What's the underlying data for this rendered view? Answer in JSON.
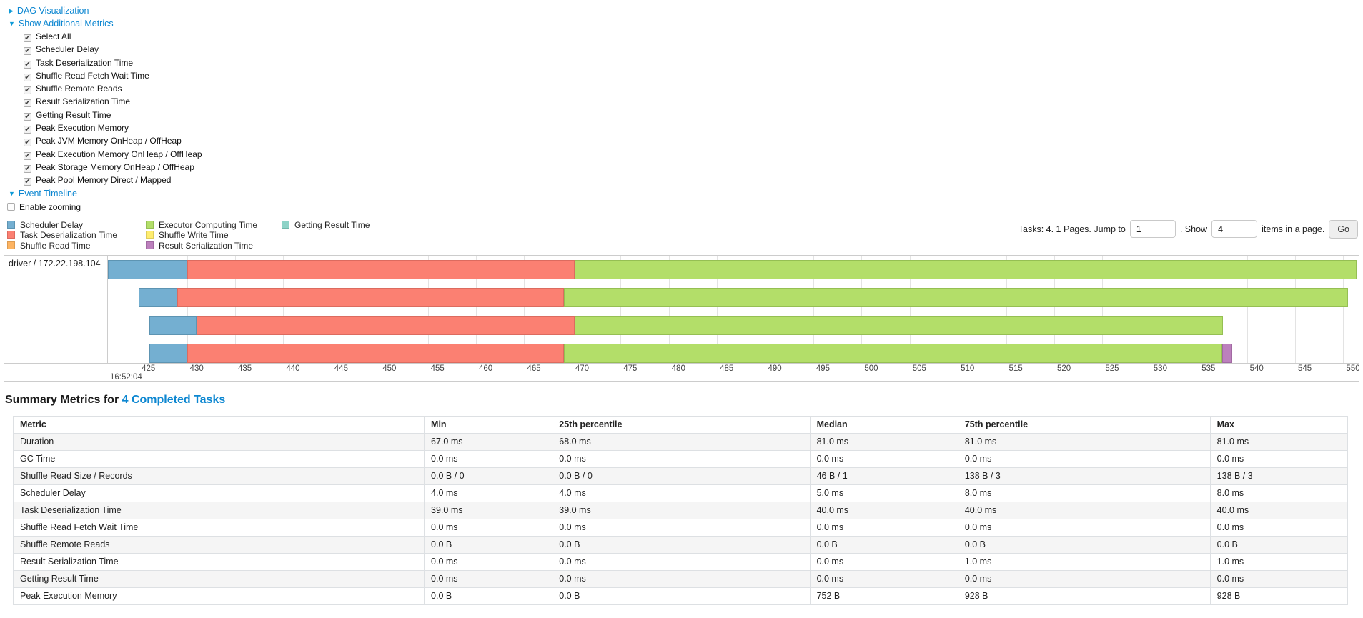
{
  "icons": {
    "collapsed": "▶",
    "expanded": "▼",
    "check": "✔"
  },
  "toggles": {
    "dag": "DAG Visualization",
    "metrics": "Show Additional Metrics",
    "timeline": "Event Timeline"
  },
  "metrics_panel": {
    "items": [
      {
        "label": "Select All",
        "checked": true
      },
      {
        "label": "Scheduler Delay",
        "checked": true
      },
      {
        "label": "Task Deserialization Time",
        "checked": true
      },
      {
        "label": "Shuffle Read Fetch Wait Time",
        "checked": true
      },
      {
        "label": "Shuffle Remote Reads",
        "checked": true
      },
      {
        "label": "Result Serialization Time",
        "checked": true
      },
      {
        "label": "Getting Result Time",
        "checked": true
      },
      {
        "label": "Peak Execution Memory",
        "checked": true
      },
      {
        "label": "Peak JVM Memory OnHeap / OffHeap",
        "checked": true
      },
      {
        "label": "Peak Execution Memory OnHeap / OffHeap",
        "checked": true
      },
      {
        "label": "Peak Storage Memory OnHeap / OffHeap",
        "checked": true
      },
      {
        "label": "Peak Pool Memory Direct / Mapped",
        "checked": true
      }
    ]
  },
  "enable_zooming": {
    "label": "Enable zooming",
    "checked": false
  },
  "palette": {
    "scheduler_delay": {
      "label": "Scheduler Delay",
      "fill": "#74AFD1",
      "stroke": "#5D94B2"
    },
    "task_deserialization": {
      "label": "Task Deserialization Time",
      "fill": "#FB8072",
      "stroke": "#DC6B5F"
    },
    "shuffle_read": {
      "label": "Shuffle Read Time",
      "fill": "#FDB462",
      "stroke": "#DD9B51"
    },
    "executor_computing": {
      "label": "Executor Computing Time",
      "fill": "#B3DE69",
      "stroke": "#95BF53"
    },
    "shuffle_write": {
      "label": "Shuffle Write Time",
      "fill": "#FFED6F",
      "stroke": "#DECD5B"
    },
    "result_serialization": {
      "label": "Result Serialization Time",
      "fill": "#BC80BD",
      "stroke": "#A169A2"
    },
    "getting_result": {
      "label": "Getting Result Time",
      "fill": "#8DD3C7",
      "stroke": "#72B8AB"
    }
  },
  "legend_columns": [
    [
      "scheduler_delay",
      "task_deserialization",
      "shuffle_read"
    ],
    [
      "executor_computing",
      "shuffle_write",
      "result_serialization"
    ],
    [
      "getting_result"
    ]
  ],
  "pagination": {
    "prefix": "Tasks: 4. 1 Pages. Jump to",
    "jump_value": "1",
    "mid": ". Show",
    "show_value": "4",
    "suffix": "items in a page.",
    "go_label": "Go"
  },
  "chart_data": {
    "type": "timeline-gantt",
    "executor_label": "driver / 172.22.198.104",
    "axis": {
      "unit": "ms",
      "min": 421.8,
      "max": 551.6,
      "tick_start": 425,
      "tick_end": 550,
      "tick_step": 5,
      "base_time_label": "16:52:04"
    },
    "tasks": [
      {
        "segments": [
          {
            "type": "scheduler_delay",
            "start": 421.8,
            "end": 430.0
          },
          {
            "type": "task_deserialization",
            "start": 430.0,
            "end": 470.2
          },
          {
            "type": "executor_computing",
            "start": 470.2,
            "end": 551.4
          }
        ]
      },
      {
        "segments": [
          {
            "type": "scheduler_delay",
            "start": 425.0,
            "end": 429.0
          },
          {
            "type": "task_deserialization",
            "start": 429.0,
            "end": 469.1
          },
          {
            "type": "executor_computing",
            "start": 469.1,
            "end": 550.5
          }
        ]
      },
      {
        "segments": [
          {
            "type": "scheduler_delay",
            "start": 426.1,
            "end": 431.0
          },
          {
            "type": "task_deserialization",
            "start": 431.0,
            "end": 470.2
          },
          {
            "type": "executor_computing",
            "start": 470.2,
            "end": 537.5
          }
        ]
      },
      {
        "segments": [
          {
            "type": "scheduler_delay",
            "start": 426.1,
            "end": 430.0
          },
          {
            "type": "task_deserialization",
            "start": 430.0,
            "end": 469.1
          },
          {
            "type": "executor_computing",
            "start": 469.1,
            "end": 537.4
          },
          {
            "type": "result_serialization",
            "start": 537.4,
            "end": 538.5
          }
        ]
      }
    ]
  },
  "summary": {
    "title_prefix": "Summary Metrics for ",
    "title_link": "4 Completed Tasks",
    "table": {
      "headers": [
        "Metric",
        "Min",
        "25th percentile",
        "Median",
        "75th percentile",
        "Max"
      ],
      "rows": [
        {
          "metric": "Duration",
          "values": [
            "67.0 ms",
            "68.0 ms",
            "81.0 ms",
            "81.0 ms",
            "81.0 ms"
          ]
        },
        {
          "metric": "GC Time",
          "values": [
            "0.0 ms",
            "0.0 ms",
            "0.0 ms",
            "0.0 ms",
            "0.0 ms"
          ]
        },
        {
          "metric": "Shuffle Read Size / Records",
          "values": [
            "0.0 B / 0",
            "0.0 B / 0",
            "46 B / 1",
            "138 B / 3",
            "138 B / 3"
          ]
        },
        {
          "metric": "Scheduler Delay",
          "values": [
            "4.0 ms",
            "4.0 ms",
            "5.0 ms",
            "8.0 ms",
            "8.0 ms"
          ]
        },
        {
          "metric": "Task Deserialization Time",
          "values": [
            "39.0 ms",
            "39.0 ms",
            "40.0 ms",
            "40.0 ms",
            "40.0 ms"
          ]
        },
        {
          "metric": "Shuffle Read Fetch Wait Time",
          "values": [
            "0.0 ms",
            "0.0 ms",
            "0.0 ms",
            "0.0 ms",
            "0.0 ms"
          ]
        },
        {
          "metric": "Shuffle Remote Reads",
          "values": [
            "0.0 B",
            "0.0 B",
            "0.0 B",
            "0.0 B",
            "0.0 B"
          ]
        },
        {
          "metric": "Result Serialization Time",
          "values": [
            "0.0 ms",
            "0.0 ms",
            "0.0 ms",
            "1.0 ms",
            "1.0 ms"
          ]
        },
        {
          "metric": "Getting Result Time",
          "values": [
            "0.0 ms",
            "0.0 ms",
            "0.0 ms",
            "0.0 ms",
            "0.0 ms"
          ]
        },
        {
          "metric": "Peak Execution Memory",
          "values": [
            "0.0 B",
            "0.0 B",
            "752 B",
            "928 B",
            "928 B"
          ]
        }
      ]
    }
  }
}
